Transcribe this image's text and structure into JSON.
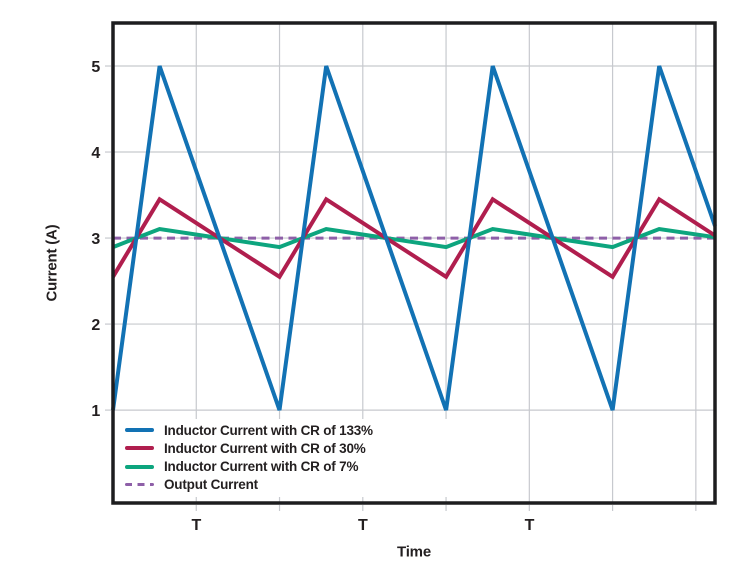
{
  "chart_data": {
    "type": "line",
    "title": "",
    "xlabel": "Time",
    "ylabel": "Current (A)",
    "x_unit": "switching periods (T)",
    "y_unit": "A",
    "xlim_T": [
      0,
      3.615
    ],
    "ylim": [
      -0.08,
      5.5
    ],
    "grid": true,
    "x_gridlines_T": [
      0.5,
      1,
      1.5,
      2,
      2.5,
      3,
      3.5
    ],
    "y_gridlines": [
      1,
      2,
      3,
      4,
      5
    ],
    "x_tick_labels": [
      {
        "x_T": 0.5,
        "label": "T"
      },
      {
        "x_T": 1.5,
        "label": "T"
      },
      {
        "x_T": 2.5,
        "label": "T"
      }
    ],
    "y_tick_labels": [
      {
        "v": 5,
        "label": "5"
      },
      {
        "v": 4,
        "label": "4"
      },
      {
        "v": 3,
        "label": "3"
      },
      {
        "v": 2,
        "label": "2"
      },
      {
        "v": 1,
        "label": "1"
      }
    ],
    "legend_position": "inside-bottom-left",
    "waveform_notes": "triangular ripple, rise duty ~28% of period, all series average 3 A",
    "series": [
      {
        "name": "inductor-cr-133",
        "label": "Inductor Current with CR of 133%",
        "color": "#1272B4",
        "style": "solid",
        "min_A": 1,
        "max_A": 5,
        "avg_A": 3,
        "points": [
          [
            0,
            1
          ],
          [
            0.28,
            5
          ],
          [
            1,
            1
          ],
          [
            1.28,
            5
          ],
          [
            2,
            1
          ],
          [
            2.28,
            5
          ],
          [
            3,
            1
          ],
          [
            3.28,
            5
          ],
          [
            3.615,
            3.14
          ]
        ]
      },
      {
        "name": "inductor-cr-30",
        "label": "Inductor Current with CR of 30%",
        "color": "#B01E4E",
        "style": "solid",
        "min_A": 2.55,
        "max_A": 3.45,
        "avg_A": 3,
        "points": [
          [
            0,
            2.55
          ],
          [
            0.28,
            3.45
          ],
          [
            1,
            2.55
          ],
          [
            1.28,
            3.45
          ],
          [
            2,
            2.55
          ],
          [
            2.28,
            3.45
          ],
          [
            3,
            2.55
          ],
          [
            3.28,
            3.45
          ],
          [
            3.615,
            3.03
          ]
        ]
      },
      {
        "name": "inductor-cr-7",
        "label": "Inductor Current with CR of 7%",
        "color": "#0DA57E",
        "style": "solid",
        "min_A": 2.895,
        "max_A": 3.105,
        "avg_A": 3,
        "points": [
          [
            0,
            2.895
          ],
          [
            0.28,
            3.105
          ],
          [
            1,
            2.895
          ],
          [
            1.28,
            3.105
          ],
          [
            2,
            2.895
          ],
          [
            2.28,
            3.105
          ],
          [
            3,
            2.895
          ],
          [
            3.28,
            3.105
          ],
          [
            3.615,
            3.01
          ]
        ]
      },
      {
        "name": "output-current",
        "label": "Output Current",
        "color": "#8E5FA8",
        "style": "dashed",
        "value_A": 3,
        "points": [
          [
            0,
            3
          ],
          [
            3.615,
            3
          ]
        ]
      }
    ]
  },
  "colors": {
    "background": "#ffffff",
    "grid": "#c7c9ce",
    "frame": "#1d1d1f",
    "text": "#231F20"
  }
}
